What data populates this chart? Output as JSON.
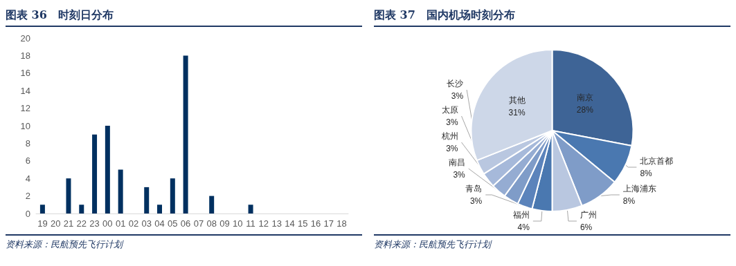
{
  "chart_data": [
    {
      "type": "bar",
      "title": "图表 36　时刻日分布",
      "categories": [
        "19",
        "20",
        "21",
        "22",
        "23",
        "00",
        "01",
        "02",
        "03",
        "04",
        "05",
        "06",
        "07",
        "08",
        "09",
        "10",
        "11",
        "12",
        "13",
        "14",
        "15",
        "16",
        "17",
        "18"
      ],
      "values": [
        1,
        0,
        4,
        1,
        9,
        10,
        5,
        0,
        3,
        1,
        4,
        18,
        0,
        2,
        0,
        0,
        1,
        0,
        0,
        0,
        0,
        0,
        0,
        0
      ],
      "color": "#003060",
      "ylim": [
        0,
        20
      ],
      "yticks": [
        0,
        2,
        4,
        6,
        8,
        10,
        12,
        14,
        16,
        18,
        20
      ],
      "grid": false,
      "annotations": [
        "资料来源：民航预先飞行计划"
      ]
    },
    {
      "type": "pie",
      "title": "图表 37　国内机场时刻分布",
      "categories": [
        "南京",
        "北京首都",
        "上海浦东",
        "广州",
        "福州",
        "青岛",
        "南昌",
        "杭州",
        "太原",
        "长沙",
        "其他"
      ],
      "values": [
        28,
        8,
        8,
        6,
        4,
        3,
        3,
        3,
        3,
        3,
        31
      ],
      "value_labels": [
        "28%",
        "8%",
        "8%",
        "6%",
        "4%",
        "3%",
        "3%",
        "3%",
        "3%",
        "3%",
        "31%"
      ],
      "colors": [
        "#3e6496",
        "#4a78b0",
        "#7f9cc8",
        "#b9c7e0",
        "#4a78b0",
        "#5b83bb",
        "#7f9cc8",
        "#95acd2",
        "#a6b9da",
        "#b9c7e0",
        "#cdd7e8"
      ],
      "annotations": [
        "资料来源：民航预先飞行计划"
      ]
    }
  ]
}
